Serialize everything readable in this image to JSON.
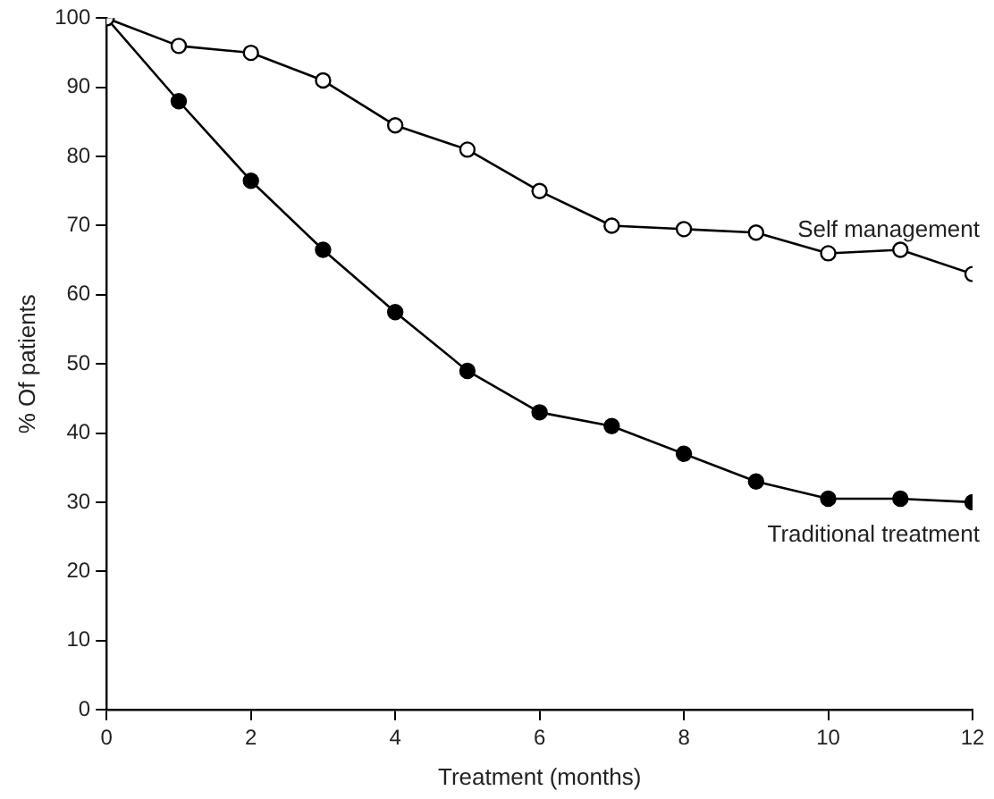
{
  "chart_data": {
    "type": "line",
    "xlabel": "Treatment (months)",
    "ylabel": "% Of patients",
    "x": [
      0,
      1,
      2,
      3,
      4,
      5,
      6,
      7,
      8,
      9,
      10,
      11,
      12
    ],
    "series": [
      {
        "name": "Self management",
        "color": "#000000",
        "values": [
          100,
          96,
          95,
          91,
          84.5,
          81,
          75,
          70,
          69.5,
          69,
          66,
          66.5,
          63
        ]
      },
      {
        "name": "Traditional treatment",
        "color": "#000000",
        "values": [
          100,
          88,
          76.5,
          66.5,
          57.5,
          49,
          43,
          41,
          37,
          33,
          30.5,
          30.5,
          30
        ]
      }
    ],
    "xlim": [
      0,
      12
    ],
    "xticks": [
      0,
      2,
      4,
      6,
      8,
      10,
      12
    ],
    "ylim": [
      0,
      100
    ],
    "yticks": [
      0,
      10,
      20,
      30,
      40,
      50,
      60,
      70,
      80,
      90,
      100
    ],
    "grid": false,
    "legend": false,
    "marker": "circle",
    "line_style": "solid"
  }
}
